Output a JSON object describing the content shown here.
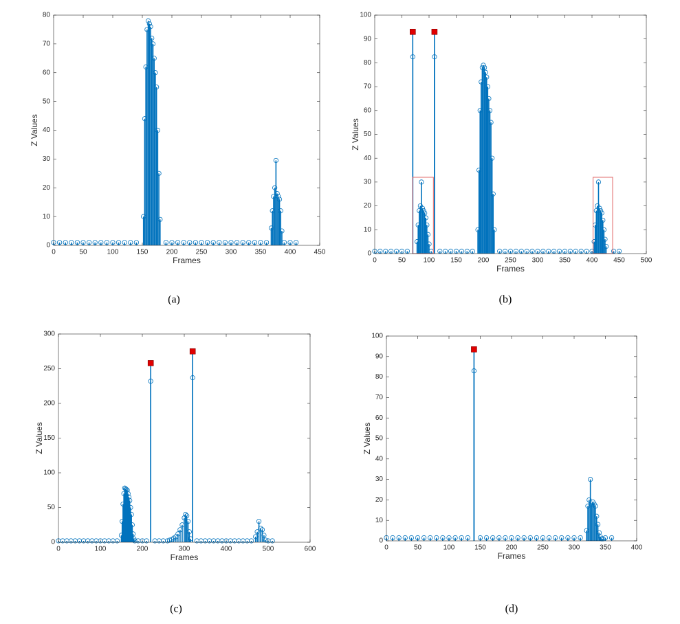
{
  "chart_data": [
    {
      "type": "stem",
      "caption": "(a)",
      "xlabel": "Frames",
      "ylabel": "Z Values",
      "xlim": [
        0,
        450
      ],
      "xticks": [
        0,
        50,
        100,
        150,
        200,
        250,
        300,
        350,
        400,
        450
      ],
      "ylim": [
        0,
        80
      ],
      "yticks": [
        0,
        10,
        20,
        30,
        40,
        50,
        60,
        70,
        80
      ],
      "series": [
        {
          "color": "#0072bd",
          "marker": "circle",
          "x": [
            0,
            10,
            20,
            30,
            40,
            50,
            60,
            70,
            80,
            90,
            100,
            110,
            120,
            130,
            140,
            152,
            154,
            156,
            158,
            160,
            162,
            164,
            166,
            168,
            170,
            172,
            174,
            176,
            178,
            180,
            190,
            200,
            210,
            220,
            230,
            240,
            250,
            260,
            270,
            280,
            290,
            300,
            310,
            320,
            330,
            340,
            350,
            360,
            368,
            370,
            372,
            374,
            376,
            378,
            380,
            382,
            384,
            386,
            390,
            400,
            410
          ],
          "values": [
            1,
            1,
            1,
            1,
            1,
            1,
            1,
            1,
            1,
            1,
            1,
            1,
            1,
            1,
            1,
            10,
            44,
            62,
            75,
            78,
            77,
            76,
            72,
            70,
            65,
            60,
            55,
            40,
            25,
            9,
            1,
            1,
            1,
            1,
            1,
            1,
            1,
            1,
            1,
            1,
            1,
            1,
            1,
            1,
            1,
            1,
            1,
            1,
            6,
            12,
            17,
            20,
            29.5,
            18,
            17,
            16,
            12,
            5,
            1,
            1,
            1
          ]
        }
      ]
    },
    {
      "type": "stem",
      "caption": "(b)",
      "xlabel": "Frames",
      "ylabel": "Z Values",
      "xlim": [
        0,
        500
      ],
      "xticks": [
        0,
        50,
        100,
        150,
        200,
        250,
        300,
        350,
        400,
        450,
        500
      ],
      "ylim": [
        0,
        100
      ],
      "yticks": [
        0,
        10,
        20,
        30,
        40,
        50,
        60,
        70,
        80,
        90,
        100
      ],
      "highlight_color": "#e06666",
      "highlight_boxes": [
        {
          "x": [
            70,
            108
          ],
          "y": [
            0,
            32
          ]
        },
        {
          "x": [
            402,
            438
          ],
          "y": [
            0,
            32
          ]
        }
      ],
      "series": [
        {
          "color": "#0072bd",
          "marker": "circle",
          "x": [
            0,
            10,
            20,
            30,
            40,
            50,
            60,
            70,
            78,
            80,
            82,
            84,
            86,
            88,
            90,
            92,
            94,
            96,
            98,
            100,
            104,
            110,
            120,
            130,
            140,
            150,
            160,
            170,
            180,
            190,
            192,
            194,
            196,
            198,
            200,
            202,
            204,
            206,
            208,
            210,
            212,
            214,
            216,
            218,
            220,
            230,
            240,
            250,
            260,
            270,
            280,
            290,
            300,
            310,
            320,
            330,
            340,
            350,
            360,
            370,
            380,
            390,
            400,
            404,
            406,
            408,
            410,
            412,
            414,
            416,
            418,
            420,
            422,
            424,
            426,
            440,
            450
          ],
          "values": [
            1,
            1,
            1,
            1,
            1,
            1,
            1,
            82.5,
            5,
            12,
            18,
            20,
            30,
            19,
            18,
            17,
            15,
            12,
            8,
            4,
            1,
            82.5,
            1,
            1,
            1,
            1,
            1,
            1,
            1,
            10,
            35,
            60,
            72,
            78,
            79,
            78,
            76,
            74,
            70,
            65,
            60,
            55,
            40,
            25,
            10,
            1,
            1,
            1,
            1,
            1,
            1,
            1,
            1,
            1,
            1,
            1,
            1,
            1,
            1,
            1,
            1,
            1,
            1,
            5,
            12,
            18,
            20,
            30,
            19,
            18,
            17,
            14,
            10,
            6,
            3,
            1,
            1
          ]
        },
        {
          "color": "#e00000",
          "marker": "square",
          "x": [
            70,
            110
          ],
          "values": [
            93,
            93
          ]
        }
      ]
    },
    {
      "type": "stem",
      "caption": "(c)",
      "xlabel": "Frames",
      "ylabel": "Z Values",
      "xlim": [
        0,
        600
      ],
      "xticks": [
        0,
        100,
        200,
        300,
        400,
        500,
        600
      ],
      "ylim": [
        0,
        300
      ],
      "yticks": [
        0,
        50,
        100,
        150,
        200,
        250,
        300
      ],
      "series": [
        {
          "color": "#0072bd",
          "marker": "circle",
          "x": [
            0,
            10,
            20,
            30,
            40,
            50,
            60,
            70,
            80,
            90,
            100,
            110,
            120,
            130,
            140,
            150,
            152,
            154,
            156,
            158,
            160,
            162,
            164,
            166,
            168,
            170,
            172,
            174,
            176,
            178,
            180,
            182,
            190,
            200,
            210,
            220,
            230,
            240,
            250,
            260,
            265,
            270,
            275,
            280,
            285,
            290,
            295,
            300,
            303,
            306,
            309,
            312,
            315,
            320,
            330,
            340,
            350,
            360,
            370,
            380,
            390,
            400,
            410,
            420,
            430,
            440,
            450,
            460,
            470,
            474,
            478,
            482,
            486,
            490,
            494,
            500,
            510
          ],
          "values": [
            2,
            2,
            2,
            2,
            2,
            2,
            2,
            2,
            2,
            2,
            2,
            2,
            2,
            2,
            2,
            10,
            30,
            55,
            70,
            78,
            77,
            76,
            75,
            70,
            65,
            60,
            50,
            40,
            25,
            12,
            5,
            2,
            2,
            2,
            2,
            232,
            2,
            2,
            2,
            2,
            3,
            4,
            6,
            8,
            12,
            18,
            25,
            35,
            40,
            38,
            30,
            15,
            5,
            237,
            2,
            2,
            2,
            2,
            2,
            2,
            2,
            2,
            2,
            2,
            2,
            2,
            2,
            2,
            8,
            15,
            30,
            20,
            18,
            10,
            3,
            2,
            2
          ]
        },
        {
          "color": "#e00000",
          "marker": "square",
          "x": [
            220,
            320
          ],
          "values": [
            258,
            275
          ]
        }
      ]
    },
    {
      "type": "stem",
      "caption": "(d)",
      "xlabel": "Frames",
      "ylabel": "Z Values",
      "xlim": [
        0,
        400
      ],
      "xticks": [
        0,
        50,
        100,
        150,
        200,
        250,
        300,
        350,
        400
      ],
      "ylim": [
        0,
        100
      ],
      "yticks": [
        0,
        10,
        20,
        30,
        40,
        50,
        60,
        70,
        80,
        90,
        100
      ],
      "series": [
        {
          "color": "#0072bd",
          "marker": "circle",
          "x": [
            0,
            10,
            20,
            30,
            40,
            50,
            60,
            70,
            80,
            90,
            100,
            110,
            120,
            130,
            140,
            150,
            160,
            170,
            180,
            190,
            200,
            210,
            220,
            230,
            240,
            250,
            260,
            270,
            280,
            290,
            300,
            310,
            320,
            322,
            324,
            326,
            328,
            330,
            332,
            334,
            336,
            338,
            340,
            342,
            344,
            346,
            350,
            360
          ],
          "values": [
            1.5,
            1.5,
            1.5,
            1.5,
            1.5,
            1.5,
            1.5,
            1.5,
            1.5,
            1.5,
            1.5,
            1.5,
            1.5,
            1.5,
            83,
            1.5,
            1.5,
            1.5,
            1.5,
            1.5,
            1.5,
            1.5,
            1.5,
            1.5,
            1.5,
            1.5,
            1.5,
            1.5,
            1.5,
            1.5,
            1.5,
            1.5,
            5,
            17,
            20,
            30,
            18,
            19,
            18,
            17,
            12,
            8,
            4,
            2,
            1,
            1,
            1.5,
            1.5
          ]
        },
        {
          "color": "#e00000",
          "marker": "square",
          "x": [
            140
          ],
          "values": [
            93.5
          ]
        }
      ]
    }
  ]
}
